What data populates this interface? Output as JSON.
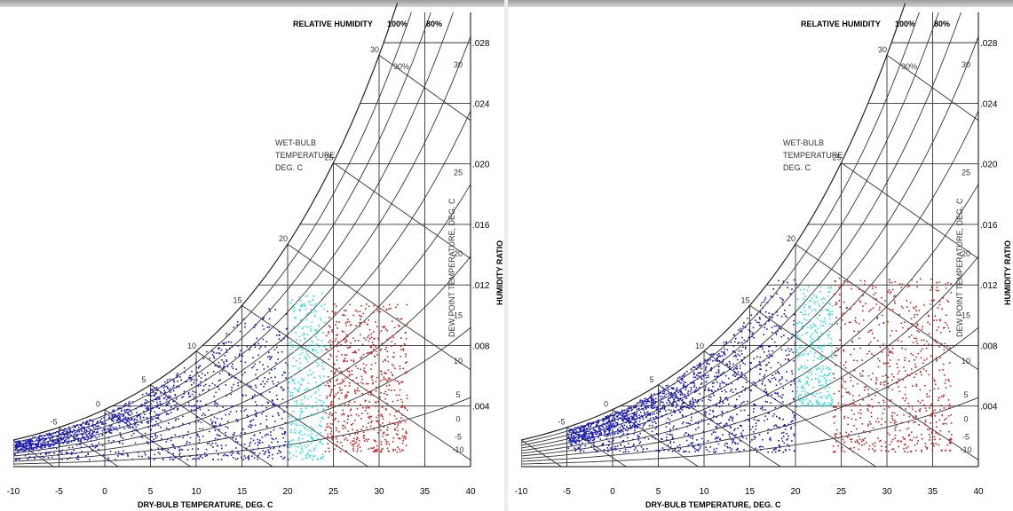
{
  "labels": {
    "relative_humidity": "RELATIVE HUMIDITY",
    "rh_100": "100%",
    "rh_80": "80%",
    "rh_90": "90%",
    "wet_bulb": [
      "WET-BULB",
      "TEMPERATURE",
      "DEG. C"
    ],
    "dew_point": "DEW POINT TEMPERATURE, DEG. C",
    "humidity_ratio": "HUMIDITY RATIO",
    "dry_bulb": "DRY-BULB TEMPERATURE, DEG. C"
  },
  "colors": {
    "blue": "#1414c8",
    "cyan": "#28e6e6",
    "red": "#d21e1e",
    "grid": "#333333"
  },
  "chart_data": [
    {
      "type": "scatter",
      "title": "",
      "xlabel": "DRY-BULB TEMPERATURE, DEG. C",
      "ylabel": "HUMIDITY RATIO",
      "xlim": [
        -10,
        40
      ],
      "ylim": [
        0,
        0.03
      ],
      "x_ticks": [
        "-10",
        "-5",
        "0",
        "5",
        "10",
        "15",
        "20",
        "25",
        "30",
        "35",
        "40"
      ],
      "hr_ticks": [
        ".004",
        ".008",
        ".012",
        ".016",
        ".020",
        ".024",
        ".028"
      ],
      "dew_ticks": [
        "-10",
        "-5",
        "0",
        "5",
        "10",
        "15",
        "20",
        "25",
        "30"
      ],
      "wet_bulb_ticks": [
        "-5",
        "0",
        "5",
        "10",
        "15",
        "20",
        "25",
        "30"
      ],
      "series": [
        {
          "color": "blue",
          "x_range": [
            -10,
            20
          ],
          "y_range": [
            0.0005,
            0.0105
          ],
          "count": 1400
        },
        {
          "color": "cyan",
          "x_range": [
            20,
            24
          ],
          "y_range": [
            0.0005,
            0.0115
          ],
          "count": 350
        },
        {
          "color": "red",
          "x_range": [
            24,
            33
          ],
          "y_range": [
            0.001,
            0.0108
          ],
          "count": 650
        }
      ]
    },
    {
      "type": "scatter",
      "title": "",
      "xlabel": "DRY-BULB TEMPERATURE, DEG. C",
      "ylabel": "HUMIDITY RATIO",
      "xlim": [
        -10,
        40
      ],
      "ylim": [
        0,
        0.03
      ],
      "x_ticks": [
        "-10",
        "-5",
        "0",
        "5",
        "10",
        "15",
        "20",
        "25",
        "30",
        "35",
        "40"
      ],
      "hr_ticks": [
        ".004",
        ".008",
        ".012",
        ".016",
        ".020",
        ".024",
        ".028"
      ],
      "dew_ticks": [
        "-10",
        "-5",
        "0",
        "5",
        "10",
        "15",
        "20",
        "25",
        "30"
      ],
      "wet_bulb_ticks": [
        "-5",
        "0",
        "5",
        "10",
        "15",
        "20",
        "25",
        "30"
      ],
      "series": [
        {
          "color": "blue",
          "x_range": [
            -5,
            20
          ],
          "y_range": [
            0.001,
            0.0125
          ],
          "count": 1600
        },
        {
          "color": "cyan",
          "x_range": [
            20,
            24
          ],
          "y_range": [
            0.004,
            0.012
          ],
          "count": 320
        },
        {
          "color": "red",
          "x_range": [
            24,
            37
          ],
          "y_range": [
            0.001,
            0.0125
          ],
          "count": 700
        }
      ]
    }
  ]
}
